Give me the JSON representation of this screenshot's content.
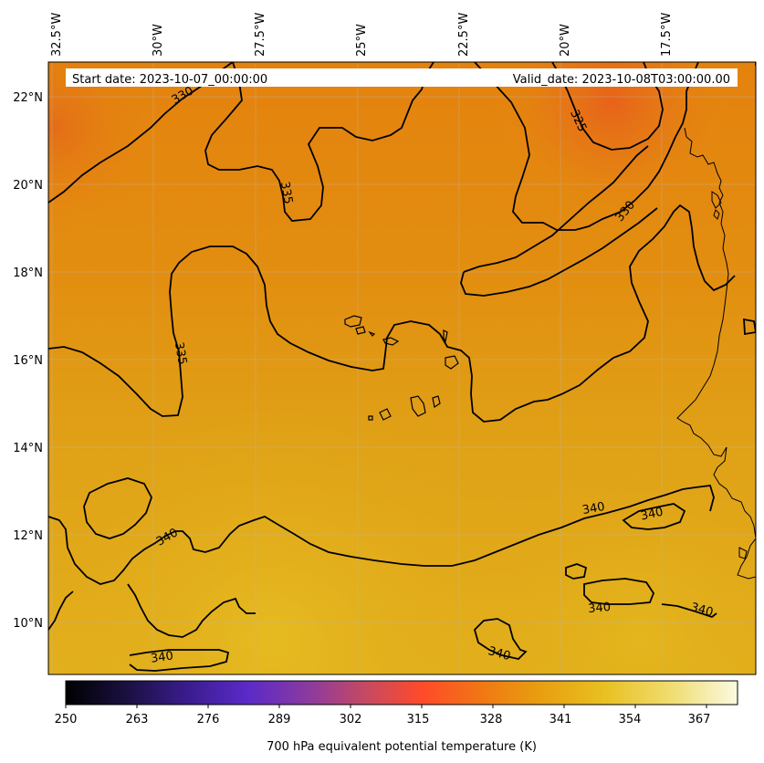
{
  "header": {
    "start_date": "Start date: 2023-10-07_00:00:00",
    "valid_date": "Valid_date: 2023-10-08T03:00:00.00"
  },
  "axes": {
    "lon_labels": [
      "32.5°W",
      "30°W",
      "27.5°W",
      "25°W",
      "22.5°W",
      "20°W",
      "17.5°W"
    ],
    "lat_labels": [
      "22°N",
      "20°N",
      "18°N",
      "16°N",
      "14°N",
      "12°N",
      "10°N"
    ]
  },
  "contours": {
    "labels": [
      {
        "text": "330",
        "contour_k": 330
      },
      {
        "text": "325",
        "contour_k": 325
      },
      {
        "text": "330",
        "contour_k": 330
      },
      {
        "text": "335",
        "contour_k": 335
      },
      {
        "text": "335",
        "contour_k": 335
      },
      {
        "text": "340",
        "contour_k": 340
      },
      {
        "text": "340",
        "contour_k": 340
      },
      {
        "text": "340",
        "contour_k": 340
      },
      {
        "text": "340",
        "contour_k": 340
      },
      {
        "text": "340",
        "contour_k": 340
      },
      {
        "text": "340",
        "contour_k": 340
      },
      {
        "text": "340",
        "contour_k": 340
      }
    ]
  },
  "colorbar": {
    "ticks": [
      "250",
      "263",
      "276",
      "289",
      "302",
      "315",
      "328",
      "341",
      "354",
      "367"
    ],
    "label": "700 hPa equivalent potential temperature (K)",
    "colors": [
      "#000000",
      "#1a1040",
      "#3a1c8c",
      "#5a2ac8",
      "#8a3aa0",
      "#c84a60",
      "#ff4a2a",
      "#f07814",
      "#e89c10",
      "#e8c020",
      "#f0dc70",
      "#fafae0"
    ]
  }
}
